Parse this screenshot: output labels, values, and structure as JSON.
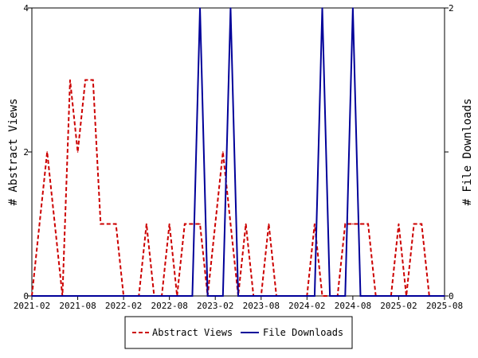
{
  "chart_data": {
    "type": "line",
    "x_tick_labels": [
      "2021-02",
      "2021-08",
      "2022-02",
      "2022-08",
      "2023-02",
      "2023-08",
      "2024-02",
      "2024-08",
      "2025-02",
      "2025-08"
    ],
    "xlim": [
      "2021-02",
      "2025-08"
    ],
    "ylabel_left": "# Abstract Views",
    "ylabel_right": "# File Downloads",
    "ylim_left": [
      0,
      4
    ],
    "ylim_right": [
      0,
      2
    ],
    "left_ticks": [
      "0",
      "2",
      "4"
    ],
    "right_ticks": [
      "0",
      "1",
      "2"
    ],
    "grid": false,
    "legend_position": "bottom-center",
    "series": [
      {
        "name": "Abstract Views",
        "axis": "left",
        "color": "#cc0000",
        "style": "dashed",
        "points": [
          [
            "2021-02",
            0
          ],
          [
            "2021-03",
            1
          ],
          [
            "2021-04",
            2
          ],
          [
            "2021-05",
            1
          ],
          [
            "2021-06",
            0
          ],
          [
            "2021-07",
            3
          ],
          [
            "2021-08",
            2
          ],
          [
            "2021-09",
            3
          ],
          [
            "2021-10",
            3
          ],
          [
            "2021-11",
            1
          ],
          [
            "2021-12",
            1
          ],
          [
            "2022-01",
            1
          ],
          [
            "2022-02",
            0
          ],
          [
            "2022-03",
            0
          ],
          [
            "2022-04",
            0
          ],
          [
            "2022-05",
            1
          ],
          [
            "2022-06",
            0
          ],
          [
            "2022-07",
            0
          ],
          [
            "2022-08",
            1
          ],
          [
            "2022-09",
            0
          ],
          [
            "2022-10",
            1
          ],
          [
            "2022-11",
            1
          ],
          [
            "2022-12",
            1
          ],
          [
            "2023-01",
            0
          ],
          [
            "2023-02",
            1
          ],
          [
            "2023-03",
            2
          ],
          [
            "2023-04",
            1
          ],
          [
            "2023-05",
            0
          ],
          [
            "2023-06",
            1
          ],
          [
            "2023-07",
            0
          ],
          [
            "2023-08",
            0
          ],
          [
            "2023-09",
            1
          ],
          [
            "2023-10",
            0
          ],
          [
            "2023-11",
            0
          ],
          [
            "2023-12",
            0
          ],
          [
            "2024-01",
            0
          ],
          [
            "2024-02",
            0
          ],
          [
            "2024-03",
            1
          ],
          [
            "2024-04",
            0
          ],
          [
            "2024-05",
            0
          ],
          [
            "2024-06",
            0
          ],
          [
            "2024-07",
            1
          ],
          [
            "2024-08",
            1
          ],
          [
            "2024-09",
            1
          ],
          [
            "2024-10",
            1
          ],
          [
            "2024-11",
            0
          ],
          [
            "2024-12",
            0
          ],
          [
            "2025-01",
            0
          ],
          [
            "2025-02",
            1
          ],
          [
            "2025-03",
            0
          ],
          [
            "2025-04",
            1
          ],
          [
            "2025-05",
            1
          ],
          [
            "2025-06",
            0
          ],
          [
            "2025-07",
            0
          ],
          [
            "2025-08",
            0
          ]
        ]
      },
      {
        "name": "File Downloads",
        "axis": "right",
        "color": "#000099",
        "style": "solid",
        "points": [
          [
            "2021-02",
            0
          ],
          [
            "2022-11",
            0
          ],
          [
            "2022-12",
            2
          ],
          [
            "2023-01",
            0
          ],
          [
            "2023-02",
            0
          ],
          [
            "2023-03",
            0
          ],
          [
            "2023-04",
            2
          ],
          [
            "2023-05",
            0
          ],
          [
            "2024-03",
            0
          ],
          [
            "2024-04",
            2
          ],
          [
            "2024-05",
            0
          ],
          [
            "2024-07",
            0
          ],
          [
            "2024-08",
            2
          ],
          [
            "2024-09",
            0
          ],
          [
            "2025-08",
            0
          ]
        ]
      }
    ]
  }
}
